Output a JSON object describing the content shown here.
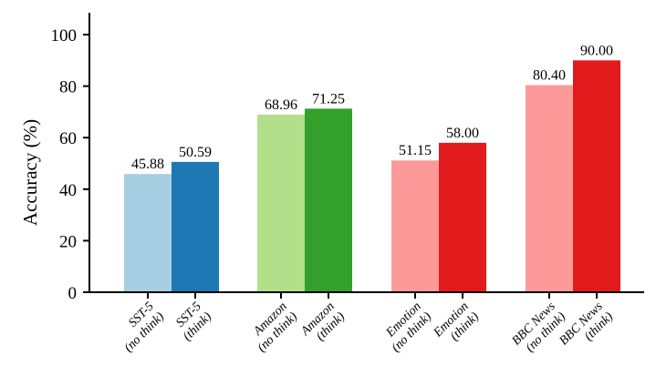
{
  "chart_data": {
    "type": "bar",
    "title": "",
    "xlabel": "",
    "ylabel": "Accuracy (%)",
    "ylim": [
      0,
      100
    ],
    "yticks": [
      0,
      20,
      40,
      60,
      80,
      100
    ],
    "grid": false,
    "legend": "none",
    "categories": [
      [
        "SST-5",
        "(no think)"
      ],
      [
        "SST-5",
        "(think)"
      ],
      [
        "Amazon",
        "(no think)"
      ],
      [
        "Amazon",
        "(think)"
      ],
      [
        "Emotion",
        "(no think)"
      ],
      [
        "Emotion",
        "(think)"
      ],
      [
        "BBC News",
        "(no think)"
      ],
      [
        "BBC News",
        "(think)"
      ]
    ],
    "values": [
      45.88,
      50.59,
      68.96,
      71.25,
      51.15,
      58.0,
      80.4,
      90.0
    ],
    "value_labels": [
      "45.88",
      "50.59",
      "68.96",
      "71.25",
      "51.15",
      "58.00",
      "80.40",
      "90.00"
    ],
    "colors": [
      "#a6cee3",
      "#1f78b4",
      "#b2df8a",
      "#33a02c",
      "#fb9a99",
      "#e31a1c",
      "#fb9a99",
      "#e31a1c"
    ]
  }
}
